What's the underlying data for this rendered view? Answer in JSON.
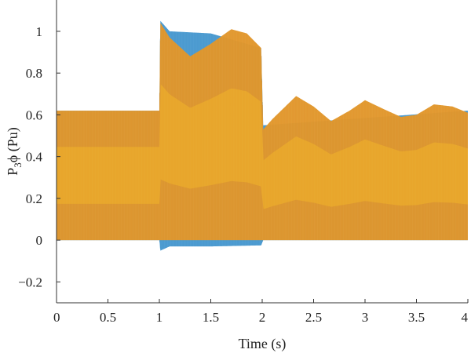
{
  "chart_data": {
    "type": "line",
    "xlabel": "Time (s)",
    "ylabel_main": "P",
    "ylabel_sub": "3",
    "ylabel_tail": "ϕ (Pu)",
    "xlim": [
      0,
      4
    ],
    "ylim": [
      -0.3,
      1.15
    ],
    "grid": false,
    "x_ticks": [
      0,
      0.5,
      1,
      1.5,
      2,
      2.5,
      3,
      3.5,
      4
    ],
    "x_tick_labels": [
      "0",
      "0.5",
      "1",
      "1.5",
      "2",
      "2.5",
      "3",
      "3.5",
      "4"
    ],
    "y_ticks": [
      -0.2,
      0,
      0.2,
      0.4,
      0.6,
      0.8,
      1
    ],
    "y_tick_labels": [
      "−0.2",
      "0",
      "0.2",
      "0.4",
      "0.6",
      "0.8",
      "1"
    ],
    "series": [
      {
        "color": "#4a9fd6",
        "envelope": {
          "x": [
            0,
            1,
            1.01,
            1.1,
            1.5,
            1.99,
            2.01,
            4
          ],
          "lower": [
            0,
            0,
            -0.05,
            -0.03,
            -0.03,
            -0.025,
            0,
            0
          ],
          "upper": [
            0.62,
            0.62,
            1.05,
            1.0,
            0.99,
            0.92,
            0.55,
            0.62
          ]
        }
      },
      {
        "color": "#e8a33a",
        "envelope": {
          "x": [
            0,
            1,
            1.01,
            1.1,
            1.3,
            1.5,
            1.7,
            1.85,
            1.99,
            2.01,
            2.1,
            2.33,
            2.5,
            2.67,
            2.85,
            3.0,
            3.17,
            3.35,
            3.5,
            3.67,
            3.85,
            4.0
          ],
          "lower": [
            0,
            0,
            0,
            0,
            0,
            0,
            0,
            0,
            0,
            0,
            0,
            0,
            0,
            0,
            0,
            0,
            0,
            0,
            0,
            0,
            0,
            0
          ],
          "upper": [
            0.62,
            0.62,
            1.04,
            0.97,
            0.88,
            0.94,
            1.01,
            0.99,
            0.92,
            0.53,
            0.58,
            0.69,
            0.64,
            0.57,
            0.62,
            0.67,
            0.63,
            0.59,
            0.6,
            0.65,
            0.64,
            0.61
          ]
        }
      }
    ]
  }
}
